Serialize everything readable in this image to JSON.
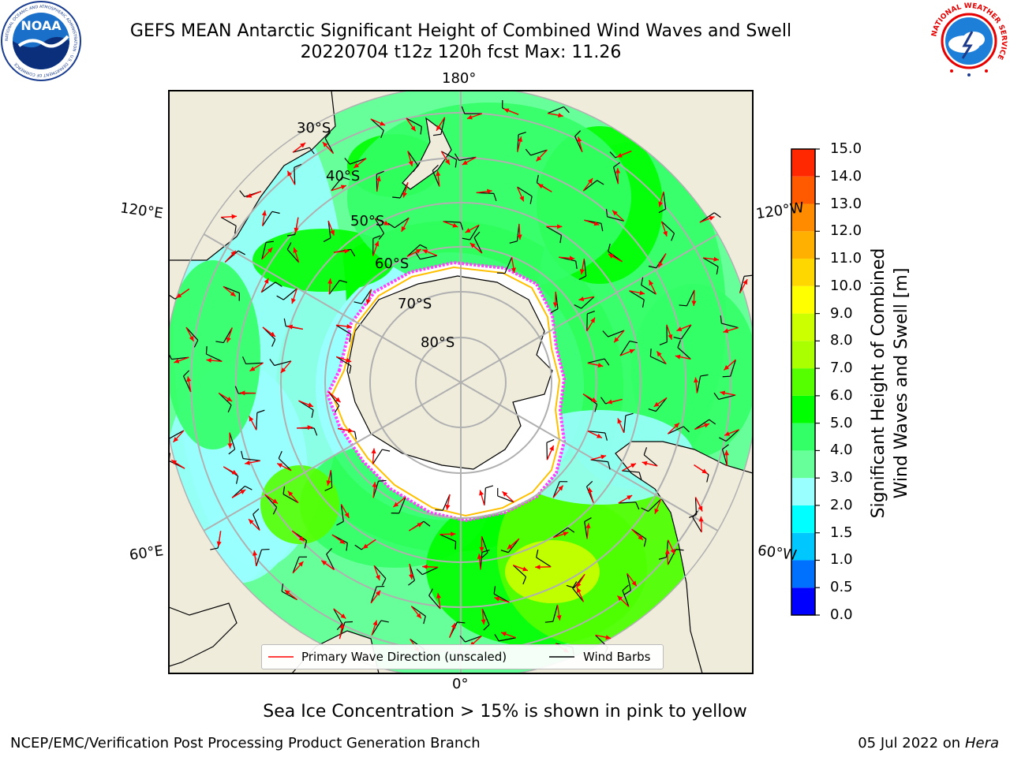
{
  "header": {
    "title_line1": "GEFS MEAN Antarctic Significant Height of Combined Wind Waves and Swell",
    "title_line2": "20220704 t12z 120h fcst   Max: 11.26"
  },
  "logos": {
    "left": {
      "name": "noaa-logo",
      "text": "NOAA",
      "ring_text": "NATIONAL OCEANIC AND ATMOSPHERIC ADMINISTRATION · U.S. DEPARTMENT OF COMMERCE"
    },
    "right": {
      "name": "nws-logo",
      "ring_text": "NATIONAL WEATHER SERVICE"
    }
  },
  "map": {
    "projection": "south-polar-stereographic",
    "longitude_labels": {
      "top": "180°",
      "bottom": "0°",
      "left_upper": "120°E",
      "left_lower": "60°E",
      "right_upper": "120°W",
      "right_lower": "60°W"
    },
    "latitude_labels": [
      "30°S",
      "40°S",
      "50°S",
      "60°S",
      "70°S",
      "80°S"
    ],
    "max_value": 11.26,
    "colors": {
      "land": "#efecdc",
      "ice_free": "#ffffff",
      "ice_edge_pink": "#ff40ff",
      "ice_edge_yellow": "#ffc000",
      "grid": "#b0b0b0",
      "wave_arrow": "#ff0000",
      "wind_barb": "#000000"
    }
  },
  "colorbar": {
    "label": "Significant Height of Combined Wind Waves and Swell [m]",
    "label_line1": "Significant Height of Combined",
    "label_line2": "Wind Waves and Swell [m]",
    "ticks": [
      "0.0",
      "0.5",
      "1.0",
      "1.5",
      "2.0",
      "3.0",
      "4.0",
      "5.0",
      "6.0",
      "7.0",
      "8.0",
      "9.0",
      "10.0",
      "11.0",
      "12.0",
      "13.0",
      "14.0",
      "15.0"
    ],
    "colors": [
      "#0000ff",
      "#0070ff",
      "#00c8ff",
      "#00ffff",
      "#99ffff",
      "#66ff99",
      "#33ff66",
      "#00ff00",
      "#55ff00",
      "#aaff00",
      "#ccff00",
      "#ffff00",
      "#ffd700",
      "#ffb000",
      "#ff8c00",
      "#ff5a00",
      "#ff2800"
    ]
  },
  "legend": {
    "wave": "Primary Wave Direction (unscaled)",
    "wind": "Wind Barbs"
  },
  "caption": "Sea Ice Concentration > 15% is shown in pink to yellow",
  "footer": {
    "left": "NCEP/EMC/Verification Post Processing Product Generation Branch",
    "right_prefix": "05 Jul 2022 on ",
    "right_italic": "Hera"
  }
}
